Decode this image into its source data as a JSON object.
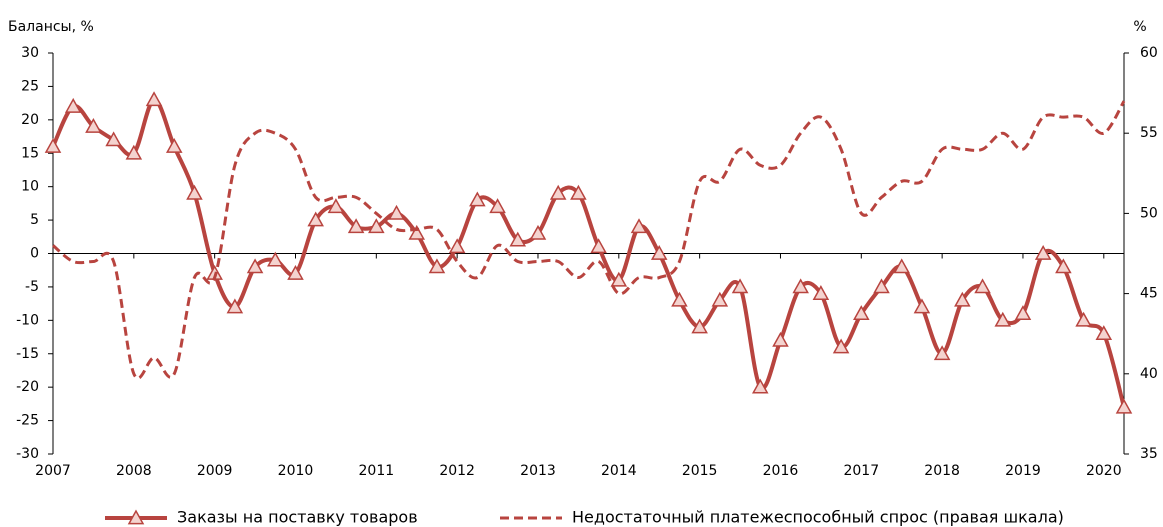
{
  "chart_data": {
    "type": "line",
    "y_label": "Балансы, %",
    "y2_label": "%",
    "x": [
      2007,
      2007.25,
      2007.5,
      2007.75,
      2008,
      2008.25,
      2008.5,
      2008.75,
      2009,
      2009.25,
      2009.5,
      2009.75,
      2010,
      2010.25,
      2010.5,
      2010.75,
      2011,
      2011.25,
      2011.5,
      2011.75,
      2012,
      2012.25,
      2012.5,
      2012.75,
      2013,
      2013.25,
      2013.5,
      2013.75,
      2014,
      2014.25,
      2014.5,
      2014.75,
      2015,
      2015.25,
      2015.5,
      2015.75,
      2016,
      2016.25,
      2016.5,
      2016.75,
      2017,
      2017.25,
      2017.5,
      2017.75,
      2018,
      2018.25,
      2018.5,
      2018.75,
      2019,
      2019.25,
      2019.5,
      2019.75,
      2020,
      2020.25
    ],
    "xlim": [
      2007,
      2020.25
    ],
    "xticks": [
      2007,
      2008,
      2009,
      2010,
      2011,
      2012,
      2013,
      2014,
      2015,
      2016,
      2017,
      2018,
      2019,
      2020
    ],
    "ylim": [
      -30,
      30
    ],
    "yticks": [
      -30,
      -25,
      -20,
      -15,
      -10,
      -5,
      0,
      5,
      10,
      15,
      20,
      25,
      30
    ],
    "y2lim": [
      35,
      60
    ],
    "y2ticks": [
      35,
      40,
      45,
      50,
      55,
      60
    ],
    "series": [
      {
        "name": "Заказы на поставку товаров",
        "color": "#b8443f",
        "marker_fill": "#f4d3cf",
        "dashed": false,
        "values": [
          16,
          22,
          19,
          17,
          15,
          23,
          16,
          9,
          -3,
          -8,
          -2,
          -1,
          -3,
          5,
          7,
          4,
          4,
          6,
          3,
          -2,
          1,
          8,
          7,
          2,
          3,
          9,
          9,
          1,
          -4,
          4,
          0,
          -7,
          -11,
          -7,
          -5,
          -20,
          -13,
          -5,
          -6,
          -14,
          -9,
          -5,
          -2,
          -8,
          -15,
          -7,
          -5,
          -10,
          -9,
          0,
          -2,
          -10,
          -12,
          -23
        ]
      },
      {
        "name": "Недостаточный платежеспособный спрос (правая шкала)",
        "color": "#b8443f",
        "dashed": true,
        "axis": "y2",
        "values": [
          48,
          47,
          47,
          47,
          40,
          41,
          40,
          46,
          46,
          53,
          55,
          55,
          54,
          51,
          51,
          51,
          50,
          49,
          49,
          49,
          47,
          46,
          48,
          47,
          47,
          47,
          46,
          47,
          45,
          46,
          46,
          47,
          52,
          52,
          54,
          53,
          53,
          55,
          56,
          54,
          50,
          51,
          52,
          52,
          54,
          54,
          54,
          55,
          54,
          56,
          56,
          56,
          55,
          57
        ]
      }
    ]
  }
}
